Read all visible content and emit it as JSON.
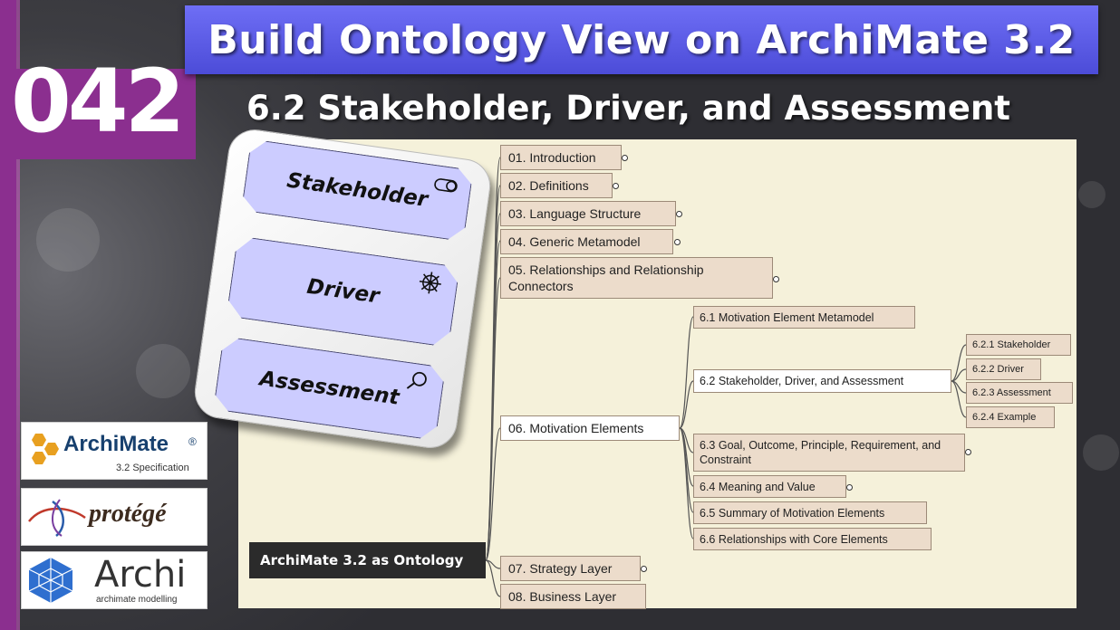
{
  "title": "Build Ontology View on ArchiMate 3.2",
  "episode": "042",
  "subtitle": "6.2 Stakeholder, Driver, and Assessment",
  "elements": {
    "stakeholder": "Stakeholder",
    "driver": "Driver",
    "assessment": "Assessment"
  },
  "mindmap": {
    "root": "ArchiMate 3.2 as Ontology",
    "n01": "01. Introduction",
    "n02": "02. Definitions",
    "n03": "03. Language Structure",
    "n04": "04. Generic Metamodel",
    "n05": "05. Relationships and Relationship Connectors",
    "n06": "06. Motivation Elements",
    "n61": "6.1 Motivation Element Metamodel",
    "n62": "6.2 Stakeholder, Driver, and Assessment",
    "n621": "6.2.1 Stakeholder",
    "n622": "6.2.2 Driver",
    "n623": "6.2.3 Assessment",
    "n624": "6.2.4 Example",
    "n63": "6.3 Goal, Outcome, Principle, Requirement, and Constraint",
    "n64": "6.4 Meaning and Value",
    "n65": "6.5 Summary of Motivation Elements",
    "n66": "6.6 Relationships with Core Elements",
    "n07": "07. Strategy Layer",
    "n08": "08. Business Layer"
  },
  "logos": {
    "archimate": "ArchiMate",
    "archimate_reg": "®",
    "archimate_sub": "3.2 Specification",
    "protege": "protégé",
    "archi": "Archi",
    "archi_sub": "archimate modelling"
  },
  "colors": {
    "banner": "#5a5ae6",
    "accent_purple": "#8b2f8f",
    "element_fill": "#ccccff",
    "node_fill": "#ecdccb"
  }
}
